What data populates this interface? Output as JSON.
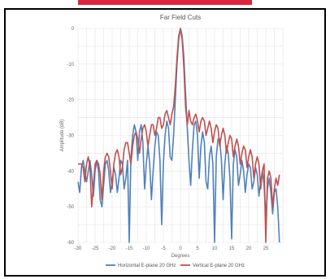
{
  "chart_data": {
    "type": "line",
    "title": "Far Field Cuts",
    "xlabel": "Degrees",
    "ylabel": "Amplitude (dB)",
    "xlim": [
      -30,
      30
    ],
    "ylim": [
      -60,
      0
    ],
    "x_ticks": [
      -30,
      -25,
      -20,
      -15,
      -10,
      -5,
      0,
      5,
      10,
      15,
      20,
      25
    ],
    "x_tick_labels": [
      "-30",
      "-25",
      "-20",
      "-15",
      "-10",
      "-5",
      "0",
      "5",
      "10",
      "15",
      "20",
      "25"
    ],
    "y_ticks": [
      0,
      -10,
      -20,
      -30,
      -40,
      -50,
      -60
    ],
    "y_tick_labels": [
      "0",
      "-10",
      "-20",
      "-30",
      "-40",
      "-50",
      "-60"
    ],
    "grid": true,
    "legend_position": "bottom",
    "series": [
      {
        "name": "Horizontal E-plane 20 GHz",
        "color": "#4f81bd",
        "points": [
          [
            -30,
            -43
          ],
          [
            -29.5,
            -46
          ],
          [
            -29,
            -39
          ],
          [
            -28.5,
            -37
          ],
          [
            -28,
            -40
          ],
          [
            -27.5,
            -43
          ],
          [
            -27,
            -40
          ],
          [
            -26.5,
            -37
          ],
          [
            -26,
            -41
          ],
          [
            -25.5,
            -47
          ],
          [
            -25,
            -40
          ],
          [
            -24.5,
            -37
          ],
          [
            -24,
            -40
          ],
          [
            -23.5,
            -48
          ],
          [
            -23,
            -50
          ],
          [
            -22.5,
            -44
          ],
          [
            -22,
            -38
          ],
          [
            -21.5,
            -37
          ],
          [
            -21,
            -40
          ],
          [
            -20.5,
            -46
          ],
          [
            -20,
            -43
          ],
          [
            -19.5,
            -39
          ],
          [
            -19,
            -41
          ],
          [
            -18.5,
            -46
          ],
          [
            -18,
            -42
          ],
          [
            -17.5,
            -37
          ],
          [
            -17,
            -38
          ],
          [
            -16.5,
            -45
          ],
          [
            -16,
            -42
          ],
          [
            -15.5,
            -37
          ],
          [
            -15,
            -60
          ],
          [
            -14.5,
            -36
          ],
          [
            -14,
            -30
          ],
          [
            -13.5,
            -27
          ],
          [
            -13,
            -29
          ],
          [
            -12.5,
            -37
          ],
          [
            -12,
            -29
          ],
          [
            -11.5,
            -27
          ],
          [
            -11,
            -32
          ],
          [
            -10.5,
            -45
          ],
          [
            -10,
            -38
          ],
          [
            -9.5,
            -33
          ],
          [
            -9,
            -38
          ],
          [
            -8.5,
            -48
          ],
          [
            -8,
            -40
          ],
          [
            -7.5,
            -33
          ],
          [
            -7,
            -29
          ],
          [
            -6.5,
            -30
          ],
          [
            -6,
            -37
          ],
          [
            -5.5,
            -55
          ],
          [
            -5,
            -38
          ],
          [
            -4.5,
            -30
          ],
          [
            -4,
            -26
          ],
          [
            -3.5,
            -28
          ],
          [
            -3,
            -36
          ],
          [
            -2.5,
            -37
          ],
          [
            -2,
            -30
          ],
          [
            -1.5,
            -20
          ],
          [
            -1,
            -10
          ],
          [
            -0.5,
            -3
          ],
          [
            0,
            0
          ],
          [
            0.5,
            -2
          ],
          [
            1,
            -8
          ],
          [
            1.5,
            -18
          ],
          [
            2,
            -28
          ],
          [
            2.5,
            -37
          ],
          [
            3,
            -44
          ],
          [
            3.5,
            -34
          ],
          [
            4,
            -27
          ],
          [
            4.5,
            -26
          ],
          [
            5,
            -30
          ],
          [
            5.5,
            -42
          ],
          [
            6,
            -33
          ],
          [
            6.5,
            -29
          ],
          [
            7,
            -32
          ],
          [
            7.5,
            -43
          ],
          [
            8,
            -45
          ],
          [
            8.5,
            -36
          ],
          [
            9,
            -33
          ],
          [
            9.5,
            -38
          ],
          [
            10,
            -60
          ],
          [
            10.5,
            -36
          ],
          [
            11,
            -31
          ],
          [
            11.5,
            -31
          ],
          [
            12,
            -37
          ],
          [
            12.5,
            -48
          ],
          [
            13,
            -38
          ],
          [
            13.5,
            -33
          ],
          [
            14,
            -35
          ],
          [
            14.5,
            -42
          ],
          [
            15,
            -59
          ],
          [
            15.5,
            -38
          ],
          [
            16,
            -34
          ],
          [
            16.5,
            -36
          ],
          [
            17,
            -44
          ],
          [
            17.5,
            -41
          ],
          [
            18,
            -37
          ],
          [
            18.5,
            -40
          ],
          [
            19,
            -46
          ],
          [
            19.5,
            -41
          ],
          [
            20,
            -38
          ],
          [
            20.5,
            -39
          ],
          [
            21,
            -45
          ],
          [
            21.5,
            -43
          ],
          [
            22,
            -39
          ],
          [
            22.5,
            -41
          ],
          [
            23,
            -47
          ],
          [
            23.5,
            -43
          ],
          [
            24,
            -40
          ],
          [
            24.5,
            -44
          ],
          [
            25,
            -53
          ],
          [
            25.5,
            -45
          ],
          [
            26,
            -42
          ],
          [
            26.5,
            -46
          ],
          [
            27,
            -52
          ],
          [
            27.5,
            -46
          ],
          [
            28,
            -45
          ],
          [
            28.5,
            -50
          ],
          [
            29,
            -60
          ]
        ]
      },
      {
        "name": "Vertical E-plane 20 GHz",
        "color": "#c0504d",
        "points": [
          [
            -30,
            -38
          ],
          [
            -29.5,
            -38
          ],
          [
            -29,
            -38
          ],
          [
            -28.5,
            -39
          ],
          [
            -28,
            -43
          ],
          [
            -27.5,
            -38
          ],
          [
            -27,
            -36
          ],
          [
            -26.5,
            -39
          ],
          [
            -26,
            -50
          ],
          [
            -25.5,
            -44
          ],
          [
            -25,
            -38
          ],
          [
            -24.5,
            -37
          ],
          [
            -24,
            -38
          ],
          [
            -23.5,
            -41
          ],
          [
            -23,
            -48
          ],
          [
            -22.5,
            -40
          ],
          [
            -22,
            -36
          ],
          [
            -21.5,
            -35
          ],
          [
            -21,
            -36
          ],
          [
            -20.5,
            -40
          ],
          [
            -20,
            -45
          ],
          [
            -19.5,
            -38
          ],
          [
            -19,
            -35
          ],
          [
            -18.5,
            -34
          ],
          [
            -18,
            -36
          ],
          [
            -17.5,
            -41
          ],
          [
            -17,
            -39
          ],
          [
            -16.5,
            -34
          ],
          [
            -16,
            -32
          ],
          [
            -15.5,
            -32
          ],
          [
            -15,
            -35
          ],
          [
            -14.5,
            -38
          ],
          [
            -14,
            -33
          ],
          [
            -13.5,
            -30
          ],
          [
            -13,
            -29
          ],
          [
            -12.5,
            -31
          ],
          [
            -12,
            -35
          ],
          [
            -11.5,
            -31
          ],
          [
            -11,
            -28
          ],
          [
            -10.5,
            -27
          ],
          [
            -10,
            -29
          ],
          [
            -9.5,
            -33
          ],
          [
            -9,
            -30
          ],
          [
            -8.5,
            -27
          ],
          [
            -8,
            -27
          ],
          [
            -7.5,
            -30
          ],
          [
            -7,
            -28
          ],
          [
            -6.5,
            -25
          ],
          [
            -6,
            -25
          ],
          [
            -5.5,
            -28
          ],
          [
            -5,
            -27
          ],
          [
            -4.5,
            -24
          ],
          [
            -4,
            -23
          ],
          [
            -3.5,
            -25
          ],
          [
            -3,
            -27
          ],
          [
            -2.5,
            -24
          ],
          [
            -2,
            -22
          ],
          [
            -1.5,
            -16
          ],
          [
            -1,
            -8
          ],
          [
            -0.5,
            -2
          ],
          [
            0,
            0
          ],
          [
            0.5,
            -3
          ],
          [
            1,
            -11
          ],
          [
            1.5,
            -22
          ],
          [
            2,
            -27
          ],
          [
            2.5,
            -23
          ],
          [
            3,
            -26
          ],
          [
            3.5,
            -27
          ],
          [
            4,
            -25
          ],
          [
            4.5,
            -24
          ],
          [
            5,
            -26
          ],
          [
            5.5,
            -29
          ],
          [
            6,
            -26
          ],
          [
            6.5,
            -25
          ],
          [
            7,
            -26
          ],
          [
            7.5,
            -30
          ],
          [
            8,
            -28
          ],
          [
            8.5,
            -26
          ],
          [
            9,
            -28
          ],
          [
            9.5,
            -32
          ],
          [
            10,
            -29
          ],
          [
            10.5,
            -27
          ],
          [
            11,
            -28
          ],
          [
            11.5,
            -33
          ],
          [
            12,
            -30
          ],
          [
            12.5,
            -28
          ],
          [
            13,
            -30
          ],
          [
            13.5,
            -35
          ],
          [
            14,
            -32
          ],
          [
            14.5,
            -30
          ],
          [
            15,
            -31
          ],
          [
            15.5,
            -36
          ],
          [
            16,
            -33
          ],
          [
            16.5,
            -31
          ],
          [
            17,
            -33
          ],
          [
            17.5,
            -38
          ],
          [
            18,
            -35
          ],
          [
            18.5,
            -33
          ],
          [
            19,
            -34
          ],
          [
            19.5,
            -39
          ],
          [
            20,
            -36
          ],
          [
            20.5,
            -34
          ],
          [
            21,
            -36
          ],
          [
            21.5,
            -42
          ],
          [
            22,
            -38
          ],
          [
            22.5,
            -36
          ],
          [
            23,
            -38
          ],
          [
            23.5,
            -45
          ],
          [
            24,
            -40
          ],
          [
            24.5,
            -38
          ],
          [
            25,
            -60
          ],
          [
            25.5,
            -42
          ],
          [
            26,
            -40
          ],
          [
            26.5,
            -42
          ],
          [
            27,
            -50
          ],
          [
            27.5,
            -45
          ],
          [
            28,
            -42
          ],
          [
            28.5,
            -44
          ],
          [
            29,
            -41
          ]
        ]
      }
    ]
  }
}
